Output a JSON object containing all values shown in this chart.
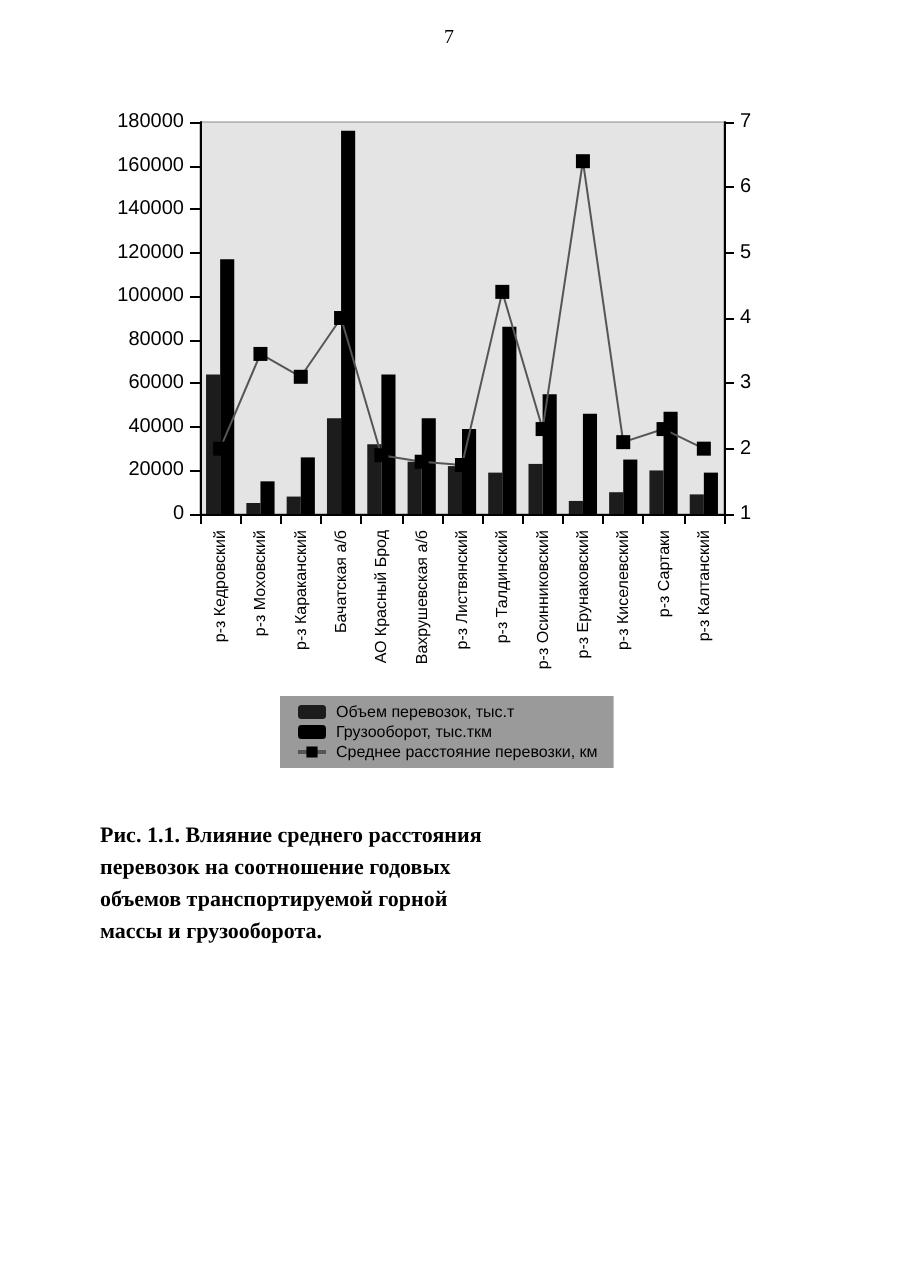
{
  "chart_data": {
    "type": "bar",
    "categories": [
      "р-з Кедровский",
      "р-з Моховский",
      "р-з Караканский",
      "Бачатская а/б",
      "АО Красный Брод",
      "Вахрушевская а/б",
      "р-з Листвянский",
      "р-з Талдинский",
      "р-з Осинниковский",
      "р-з Ерунаковский",
      "р-з Киселевский",
      "р-з Сартаки",
      "р-з Калтанский"
    ],
    "series": [
      {
        "name": "Объем перевозок, тыс.т",
        "color": "#1c1c1c",
        "values": [
          64000,
          5000,
          8000,
          44000,
          32000,
          24000,
          22000,
          19000,
          23000,
          6000,
          10000,
          20000,
          9000
        ]
      },
      {
        "name": "Грузооборот, тыс.ткм",
        "color": "#000000",
        "values": [
          117000,
          15000,
          26000,
          176000,
          64000,
          44000,
          39000,
          86000,
          55000,
          46000,
          25000,
          47000,
          19000
        ]
      },
      {
        "name": "Среднее расстояние перевозки, км",
        "type": "line",
        "axis": "y2",
        "color": "#555555",
        "values": [
          2.0,
          3.45,
          3.1,
          4.0,
          1.9,
          1.8,
          1.75,
          4.4,
          2.3,
          6.4,
          2.1,
          2.3,
          2.0
        ]
      }
    ],
    "ylim": [
      0,
      180000
    ],
    "yticks": [
      0,
      20000,
      40000,
      60000,
      80000,
      100000,
      120000,
      140000,
      160000,
      180000
    ],
    "y2lim": [
      1,
      7
    ],
    "y2ticks": [
      1,
      2,
      3,
      4,
      5,
      6,
      7
    ],
    "marker": "square",
    "grid": false,
    "legend": "bottom",
    "annotations": [
      "7",
      "Рис. 1.1. Влияние среднего расстояния перевозок на соотношение годовых объемов транспортируемой горной массы и грузооборота."
    ]
  }
}
